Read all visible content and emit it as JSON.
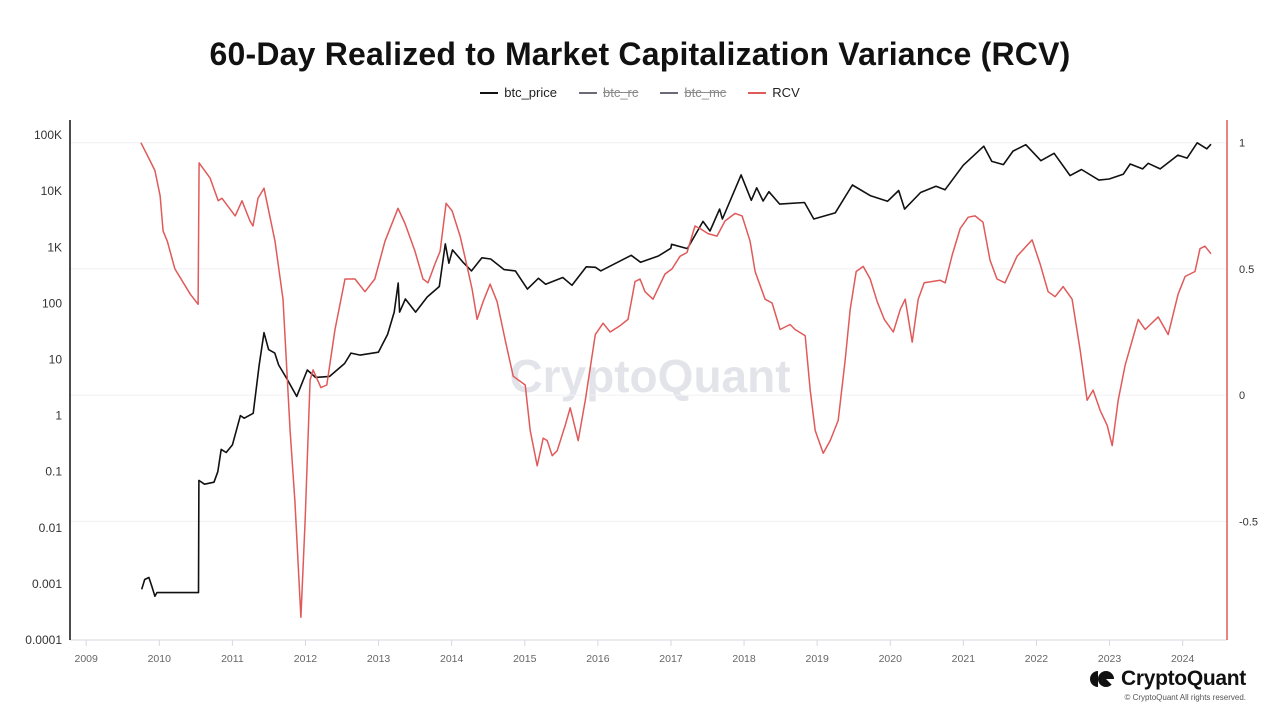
{
  "chart_data": {
    "type": "line",
    "title": "60-Day Realized to Market Capitalization Variance (RCV)",
    "legend": [
      {
        "name": "btc_price",
        "color": "#111111",
        "visible": true
      },
      {
        "name": "btc_rc",
        "color": "#6b6b78",
        "visible": false
      },
      {
        "name": "btc_mc",
        "color": "#6b6b78",
        "visible": false
      },
      {
        "name": "RCV",
        "color": "#e05a5a",
        "visible": true
      }
    ],
    "legend_position": "top-center",
    "x_axis": {
      "type": "date",
      "range": [
        "2008-10-12",
        "2024-08-10"
      ],
      "ticks": [
        "2009",
        "2010",
        "2011",
        "2012",
        "2013",
        "2014",
        "2015",
        "2016",
        "2017",
        "2018",
        "2019",
        "2020",
        "2021",
        "2022",
        "2023",
        "2024"
      ]
    },
    "y_left": {
      "scale": "log",
      "range": [
        0.0001,
        186000
      ],
      "ticks": [
        {
          "v": 100000,
          "label": "100K"
        },
        {
          "v": 10000,
          "label": "10K"
        },
        {
          "v": 1000,
          "label": "1K"
        },
        {
          "v": 100,
          "label": "100"
        },
        {
          "v": 10,
          "label": "10"
        },
        {
          "v": 1,
          "label": "1"
        },
        {
          "v": 0.1,
          "label": "0.1"
        },
        {
          "v": 0.01,
          "label": "0.01"
        },
        {
          "v": 0.001,
          "label": "0.001"
        },
        {
          "v": 0.0001,
          "label": "0.0001"
        }
      ]
    },
    "y_right": {
      "scale": "linear",
      "range": [
        -0.97,
        1.09
      ],
      "ticks": [
        {
          "v": 1,
          "label": "1"
        },
        {
          "v": 0.5,
          "label": "0.5"
        },
        {
          "v": 0,
          "label": "0"
        },
        {
          "v": -0.5,
          "label": "-0.5"
        }
      ],
      "grid": true
    },
    "series": [
      {
        "name": "btc_price",
        "axis": "left",
        "color": "#111111",
        "points": [
          [
            "2009-10-05",
            0.0008
          ],
          [
            "2009-10-20",
            0.0012
          ],
          [
            "2009-11-10",
            0.0013
          ],
          [
            "2009-11-25",
            0.0009
          ],
          [
            "2009-12-10",
            0.0006
          ],
          [
            "2009-12-20",
            0.0007
          ],
          [
            "2010-07-16",
            0.0007
          ],
          [
            "2010-07-18",
            0.07
          ],
          [
            "2010-08-15",
            0.06
          ],
          [
            "2010-10-01",
            0.065
          ],
          [
            "2010-10-20",
            0.1
          ],
          [
            "2010-11-06",
            0.25
          ],
          [
            "2010-12-01",
            0.22
          ],
          [
            "2011-01-01",
            0.3
          ],
          [
            "2011-02-10",
            1.0
          ],
          [
            "2011-03-01",
            0.9
          ],
          [
            "2011-04-15",
            1.1
          ],
          [
            "2011-05-15",
            8
          ],
          [
            "2011-06-08",
            30
          ],
          [
            "2011-07-01",
            15
          ],
          [
            "2011-08-01",
            13
          ],
          [
            "2011-08-20",
            8
          ],
          [
            "2011-10-01",
            4.5
          ],
          [
            "2011-11-18",
            2.2
          ],
          [
            "2012-01-10",
            6.5
          ],
          [
            "2012-02-20",
            4.8
          ],
          [
            "2012-05-01",
            5
          ],
          [
            "2012-07-15",
            8.5
          ],
          [
            "2012-08-16",
            13
          ],
          [
            "2012-10-01",
            12
          ],
          [
            "2012-12-31",
            13.5
          ],
          [
            "2013-02-15",
            28
          ],
          [
            "2013-03-20",
            70
          ],
          [
            "2013-04-09",
            230
          ],
          [
            "2013-04-16",
            70
          ],
          [
            "2013-05-15",
            120
          ],
          [
            "2013-07-05",
            70
          ],
          [
            "2013-09-01",
            130
          ],
          [
            "2013-10-31",
            200
          ],
          [
            "2013-11-30",
            1150
          ],
          [
            "2013-12-18",
            520
          ],
          [
            "2014-01-05",
            900
          ],
          [
            "2014-02-25",
            550
          ],
          [
            "2014-04-10",
            380
          ],
          [
            "2014-06-01",
            650
          ],
          [
            "2014-07-15",
            620
          ],
          [
            "2014-09-20",
            400
          ],
          [
            "2014-11-15",
            380
          ],
          [
            "2015-01-14",
            180
          ],
          [
            "2015-03-10",
            280
          ],
          [
            "2015-04-15",
            220
          ],
          [
            "2015-07-10",
            290
          ],
          [
            "2015-08-25",
            210
          ],
          [
            "2015-11-04",
            450
          ],
          [
            "2015-12-20",
            440
          ],
          [
            "2016-01-15",
            380
          ],
          [
            "2016-06-16",
            720
          ],
          [
            "2016-08-02",
            540
          ],
          [
            "2016-10-30",
            700
          ],
          [
            "2016-12-31",
            960
          ],
          [
            "2017-01-04",
            1130
          ],
          [
            "2017-03-24",
            950
          ],
          [
            "2017-06-10",
            2900
          ],
          [
            "2017-07-15",
            1950
          ],
          [
            "2017-09-01",
            4800
          ],
          [
            "2017-09-15",
            3200
          ],
          [
            "2017-12-17",
            19500
          ],
          [
            "2018-02-06",
            6900
          ],
          [
            "2018-03-05",
            11500
          ],
          [
            "2018-04-06",
            6700
          ],
          [
            "2018-05-05",
            9800
          ],
          [
            "2018-06-28",
            5900
          ],
          [
            "2018-10-30",
            6300
          ],
          [
            "2018-12-15",
            3200
          ],
          [
            "2019-04-01",
            4100
          ],
          [
            "2019-06-26",
            12900
          ],
          [
            "2019-09-25",
            8300
          ],
          [
            "2019-12-18",
            6600
          ],
          [
            "2020-02-12",
            10300
          ],
          [
            "2020-03-13",
            4800
          ],
          [
            "2020-06-01",
            9500
          ],
          [
            "2020-08-17",
            12300
          ],
          [
            "2020-10-01",
            10600
          ],
          [
            "2020-12-31",
            29000
          ],
          [
            "2021-04-13",
            63500
          ],
          [
            "2021-05-23",
            34000
          ],
          [
            "2021-07-20",
            29800
          ],
          [
            "2021-09-06",
            52000
          ],
          [
            "2021-11-09",
            67500
          ],
          [
            "2022-01-23",
            35000
          ],
          [
            "2022-03-30",
            47500
          ],
          [
            "2022-06-18",
            19000
          ],
          [
            "2022-08-14",
            24400
          ],
          [
            "2022-11-09",
            15800
          ],
          [
            "2022-12-30",
            16500
          ],
          [
            "2023-03-10",
            20000
          ],
          [
            "2023-04-14",
            30500
          ],
          [
            "2023-06-15",
            25000
          ],
          [
            "2023-07-13",
            31500
          ],
          [
            "2023-09-11",
            25000
          ],
          [
            "2023-12-08",
            44000
          ],
          [
            "2024-01-23",
            39000
          ],
          [
            "2024-03-14",
            73000
          ],
          [
            "2024-05-01",
            57000
          ],
          [
            "2024-05-22",
            69000
          ]
        ]
      },
      {
        "name": "RCV",
        "axis": "right",
        "color": "#e05a5a",
        "points": [
          [
            "2009-10-01",
            1.0
          ],
          [
            "2009-11-15",
            0.93
          ],
          [
            "2009-12-10",
            0.89
          ],
          [
            "2010-01-05",
            0.79
          ],
          [
            "2010-01-20",
            0.65
          ],
          [
            "2010-02-10",
            0.61
          ],
          [
            "2010-03-20",
            0.5
          ],
          [
            "2010-06-05",
            0.4
          ],
          [
            "2010-07-14",
            0.36
          ],
          [
            "2010-07-19",
            0.92
          ],
          [
            "2010-09-12",
            0.86
          ],
          [
            "2010-10-22",
            0.77
          ],
          [
            "2010-11-10",
            0.78
          ],
          [
            "2011-01-15",
            0.71
          ],
          [
            "2011-02-18",
            0.77
          ],
          [
            "2011-03-30",
            0.69
          ],
          [
            "2011-04-14",
            0.67
          ],
          [
            "2011-05-09",
            0.78
          ],
          [
            "2011-06-08",
            0.82
          ],
          [
            "2011-08-02",
            0.61
          ],
          [
            "2011-09-11",
            0.38
          ],
          [
            "2011-10-16",
            -0.14
          ],
          [
            "2011-11-09",
            -0.42
          ],
          [
            "2011-12-09",
            -0.88
          ],
          [
            "2011-12-30",
            -0.5
          ],
          [
            "2012-01-24",
            0.06
          ],
          [
            "2012-02-08",
            0.1
          ],
          [
            "2012-03-18",
            0.03
          ],
          [
            "2012-04-17",
            0.04
          ],
          [
            "2012-05-28",
            0.26
          ],
          [
            "2012-07-17",
            0.46
          ],
          [
            "2012-09-05",
            0.46
          ],
          [
            "2012-10-25",
            0.41
          ],
          [
            "2012-12-13",
            0.46
          ],
          [
            "2013-02-02",
            0.61
          ],
          [
            "2013-04-08",
            0.74
          ],
          [
            "2013-05-13",
            0.68
          ],
          [
            "2013-07-02",
            0.57
          ],
          [
            "2013-08-11",
            0.46
          ],
          [
            "2013-09-05",
            0.445
          ],
          [
            "2013-10-10",
            0.52
          ],
          [
            "2013-11-04",
            0.57
          ],
          [
            "2013-12-04",
            0.76
          ],
          [
            "2014-01-03",
            0.73
          ],
          [
            "2014-02-12",
            0.63
          ],
          [
            "2014-03-19",
            0.51
          ],
          [
            "2014-04-13",
            0.42
          ],
          [
            "2014-05-08",
            0.3
          ],
          [
            "2014-06-07",
            0.37
          ],
          [
            "2014-07-12",
            0.44
          ],
          [
            "2014-08-16",
            0.37
          ],
          [
            "2014-09-25",
            0.22
          ],
          [
            "2014-11-04",
            0.075
          ],
          [
            "2015-01-03",
            0.04
          ],
          [
            "2015-01-28",
            -0.14
          ],
          [
            "2015-03-04",
            -0.28
          ],
          [
            "2015-04-03",
            -0.17
          ],
          [
            "2015-04-23",
            -0.18
          ],
          [
            "2015-05-18",
            -0.24
          ],
          [
            "2015-06-12",
            -0.22
          ],
          [
            "2015-07-22",
            -0.12
          ],
          [
            "2015-08-16",
            -0.05
          ],
          [
            "2015-09-25",
            -0.18
          ],
          [
            "2015-10-30",
            -0.02
          ],
          [
            "2015-12-19",
            0.24
          ],
          [
            "2016-01-27",
            0.285
          ],
          [
            "2016-03-02",
            0.25
          ],
          [
            "2016-04-21",
            0.275
          ],
          [
            "2016-05-31",
            0.3
          ],
          [
            "2016-07-05",
            0.45
          ],
          [
            "2016-07-30",
            0.46
          ],
          [
            "2016-08-24",
            0.41
          ],
          [
            "2016-10-03",
            0.38
          ],
          [
            "2016-12-02",
            0.48
          ],
          [
            "2017-01-06",
            0.5
          ],
          [
            "2017-02-15",
            0.55
          ],
          [
            "2017-03-22",
            0.565
          ],
          [
            "2017-05-01",
            0.67
          ],
          [
            "2017-05-26",
            0.66
          ],
          [
            "2017-07-05",
            0.64
          ],
          [
            "2017-08-19",
            0.63
          ],
          [
            "2017-09-28",
            0.69
          ],
          [
            "2017-11-17",
            0.72
          ],
          [
            "2017-12-22",
            0.71
          ],
          [
            "2018-01-31",
            0.61
          ],
          [
            "2018-02-25",
            0.49
          ],
          [
            "2018-04-16",
            0.38
          ],
          [
            "2018-05-21",
            0.365
          ],
          [
            "2018-06-30",
            0.26
          ],
          [
            "2018-08-19",
            0.28
          ],
          [
            "2018-09-13",
            0.26
          ],
          [
            "2018-11-02",
            0.235
          ],
          [
            "2018-11-27",
            0.02
          ],
          [
            "2018-12-22",
            -0.14
          ],
          [
            "2019-01-31",
            -0.23
          ],
          [
            "2019-03-07",
            -0.18
          ],
          [
            "2019-04-16",
            -0.1
          ],
          [
            "2019-05-21",
            0.14
          ],
          [
            "2019-06-15",
            0.34
          ],
          [
            "2019-07-15",
            0.49
          ],
          [
            "2019-08-19",
            0.51
          ],
          [
            "2019-09-23",
            0.46
          ],
          [
            "2019-10-28",
            0.37
          ],
          [
            "2019-12-02",
            0.3
          ],
          [
            "2020-01-16",
            0.25
          ],
          [
            "2020-02-20",
            0.34
          ],
          [
            "2020-03-16",
            0.38
          ],
          [
            "2020-04-20",
            0.21
          ],
          [
            "2020-05-20",
            0.38
          ],
          [
            "2020-06-19",
            0.445
          ],
          [
            "2020-09-07",
            0.455
          ],
          [
            "2020-10-02",
            0.445
          ],
          [
            "2020-11-06",
            0.555
          ],
          [
            "2020-12-16",
            0.66
          ],
          [
            "2021-01-25",
            0.705
          ],
          [
            "2021-02-28",
            0.71
          ],
          [
            "2021-04-09",
            0.685
          ],
          [
            "2021-05-14",
            0.535
          ],
          [
            "2021-06-18",
            0.46
          ],
          [
            "2021-07-28",
            0.445
          ],
          [
            "2021-09-26",
            0.55
          ],
          [
            "2021-12-10",
            0.615
          ],
          [
            "2022-01-19",
            0.52
          ],
          [
            "2022-02-28",
            0.41
          ],
          [
            "2022-04-04",
            0.39
          ],
          [
            "2022-05-14",
            0.43
          ],
          [
            "2022-06-28",
            0.38
          ],
          [
            "2022-08-07",
            0.18
          ],
          [
            "2022-09-11",
            -0.02
          ],
          [
            "2022-10-11",
            0.02
          ],
          [
            "2022-11-15",
            -0.06
          ],
          [
            "2022-12-20",
            -0.12
          ],
          [
            "2023-01-14",
            -0.2
          ],
          [
            "2023-02-13",
            -0.02
          ],
          [
            "2023-03-20",
            0.12
          ],
          [
            "2023-05-24",
            0.3
          ],
          [
            "2023-06-28",
            0.26
          ],
          [
            "2023-09-01",
            0.31
          ],
          [
            "2023-10-21",
            0.24
          ],
          [
            "2023-12-09",
            0.4
          ],
          [
            "2024-01-13",
            0.47
          ],
          [
            "2024-03-03",
            0.49
          ],
          [
            "2024-03-28",
            0.58
          ],
          [
            "2024-04-22",
            0.59
          ],
          [
            "2024-05-22",
            0.56
          ]
        ]
      }
    ]
  },
  "watermark": "CryptoQuant",
  "brand": {
    "name": "CryptoQuant",
    "copyright": "© CryptoQuant All rights reserved."
  }
}
